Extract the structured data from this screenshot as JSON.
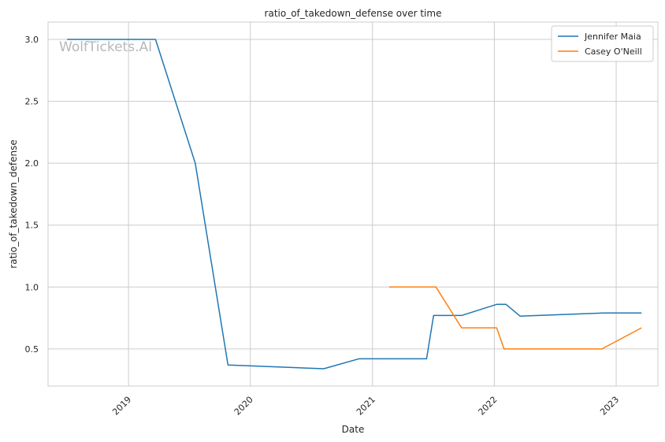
{
  "chart_data": {
    "type": "line",
    "title": "ratio_of_takedown_defense over time",
    "xlabel": "Date",
    "ylabel": "ratio_of_takedown_defense",
    "watermark": "WolfTickets.AI",
    "xlim": [
      "2018-05-05",
      "2023-05-06"
    ],
    "ylim": [
      0.2,
      3.14
    ],
    "x_ticks": [
      "2019-01-01",
      "2020-01-01",
      "2021-01-01",
      "2022-01-01",
      "2023-01-01"
    ],
    "x_tick_labels": [
      "2019",
      "2020",
      "2021",
      "2022",
      "2023"
    ],
    "y_ticks": [
      0.5,
      1.0,
      1.5,
      2.0,
      2.5,
      3.0
    ],
    "y_tick_labels": [
      "0.5",
      "1.0",
      "1.5",
      "2.0",
      "2.5",
      "3.0"
    ],
    "grid": true,
    "legend_position": "top-right",
    "series": [
      {
        "name": "Jennifer Maia",
        "color": "#1f77b4",
        "points": [
          [
            "2018-07-01",
            3.0
          ],
          [
            "2019-03-23",
            3.0
          ],
          [
            "2019-07-20",
            2.0
          ],
          [
            "2019-10-26",
            0.37
          ],
          [
            "2020-08-08",
            0.34
          ],
          [
            "2020-11-21",
            0.42
          ],
          [
            "2021-06-12",
            0.42
          ],
          [
            "2021-07-03",
            0.77
          ],
          [
            "2021-09-25",
            0.77
          ],
          [
            "2022-01-08",
            0.86
          ],
          [
            "2022-02-05",
            0.86
          ],
          [
            "2022-03-19",
            0.765
          ],
          [
            "2022-11-19",
            0.79
          ],
          [
            "2023-03-18",
            0.79
          ]
        ]
      },
      {
        "name": "Casey O'Neill",
        "color": "#ff7f0e",
        "points": [
          [
            "2021-02-20",
            1.0
          ],
          [
            "2021-07-10",
            1.0
          ],
          [
            "2021-09-25",
            0.67
          ],
          [
            "2022-01-08",
            0.67
          ],
          [
            "2022-01-30",
            0.5
          ],
          [
            "2022-11-19",
            0.5
          ],
          [
            "2023-03-18",
            0.67
          ]
        ]
      }
    ]
  }
}
